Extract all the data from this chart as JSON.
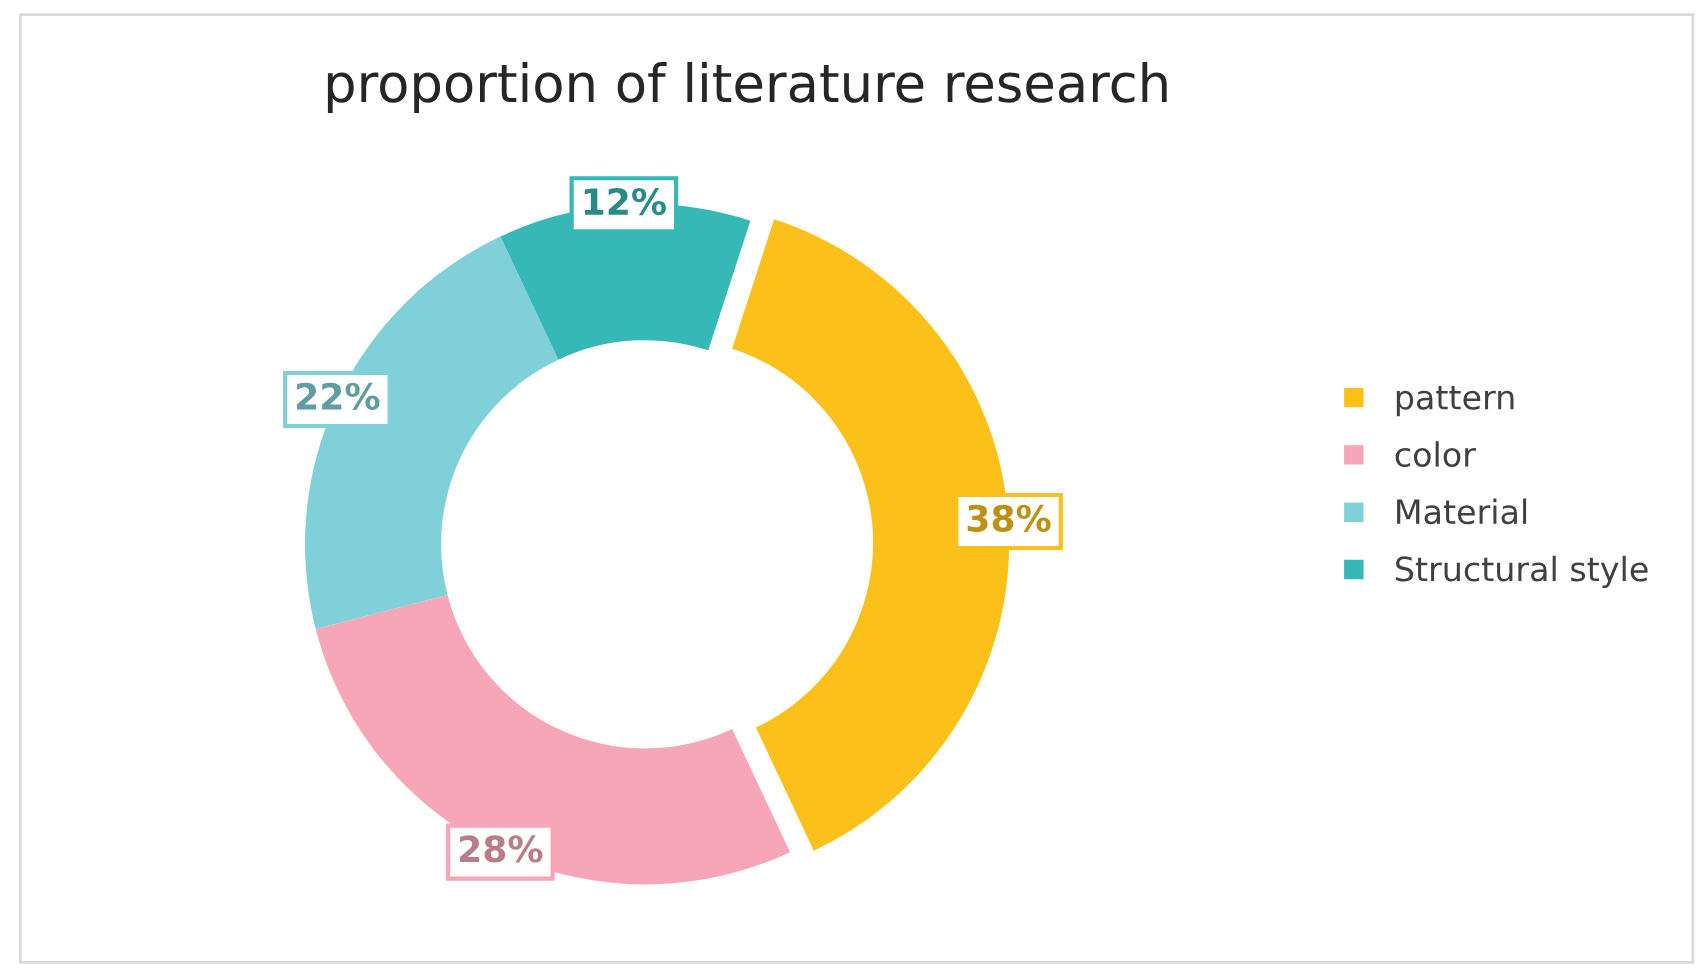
{
  "chart_data": {
    "type": "donut",
    "title": "proportion of literature research",
    "categories": [
      "pattern",
      "color",
      "Material",
      "Structural style"
    ],
    "values": [
      38,
      28,
      22,
      12
    ],
    "value_labels": [
      "38%",
      "28%",
      "22%",
      "12%"
    ],
    "colors": [
      "#fbc11a",
      "#f7a6b7",
      "#80d0d9",
      "#36b9b6"
    ],
    "legend": "right"
  }
}
